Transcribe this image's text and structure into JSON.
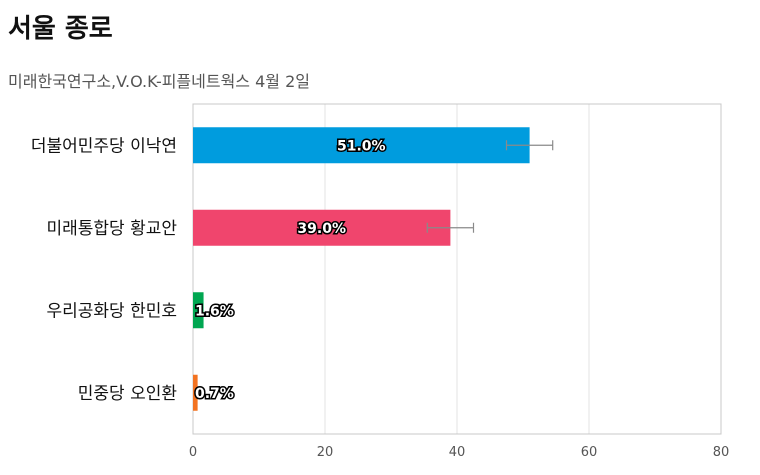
{
  "header": {
    "title": "서울 종로",
    "subtitle": "미래한국연구소,V.O.K-피플네트웍스 4월 2일"
  },
  "chart_data": {
    "type": "bar",
    "orientation": "horizontal",
    "title": "서울 종로",
    "subtitle": "미래한국연구소,V.O.K-피플네트웍스 4월 2일",
    "categories": [
      "더불어민주당 이낙연",
      "미래통합당 황교안",
      "우리공화당 한민호",
      "민중당 오인환"
    ],
    "values": [
      51.0,
      39.0,
      1.6,
      0.7
    ],
    "labels": [
      "51.0%",
      "39.0%",
      "1.6%",
      "0.7%"
    ],
    "error_bars": [
      [
        47.5,
        54.5
      ],
      [
        35.5,
        42.5
      ],
      null,
      null
    ],
    "colors": [
      "#009cde",
      "#f0456d",
      "#00a651",
      "#f37321"
    ],
    "xlim": [
      0,
      80
    ],
    "xticks": [
      0,
      20,
      40,
      60,
      80
    ],
    "grid": true,
    "legend": "none"
  }
}
